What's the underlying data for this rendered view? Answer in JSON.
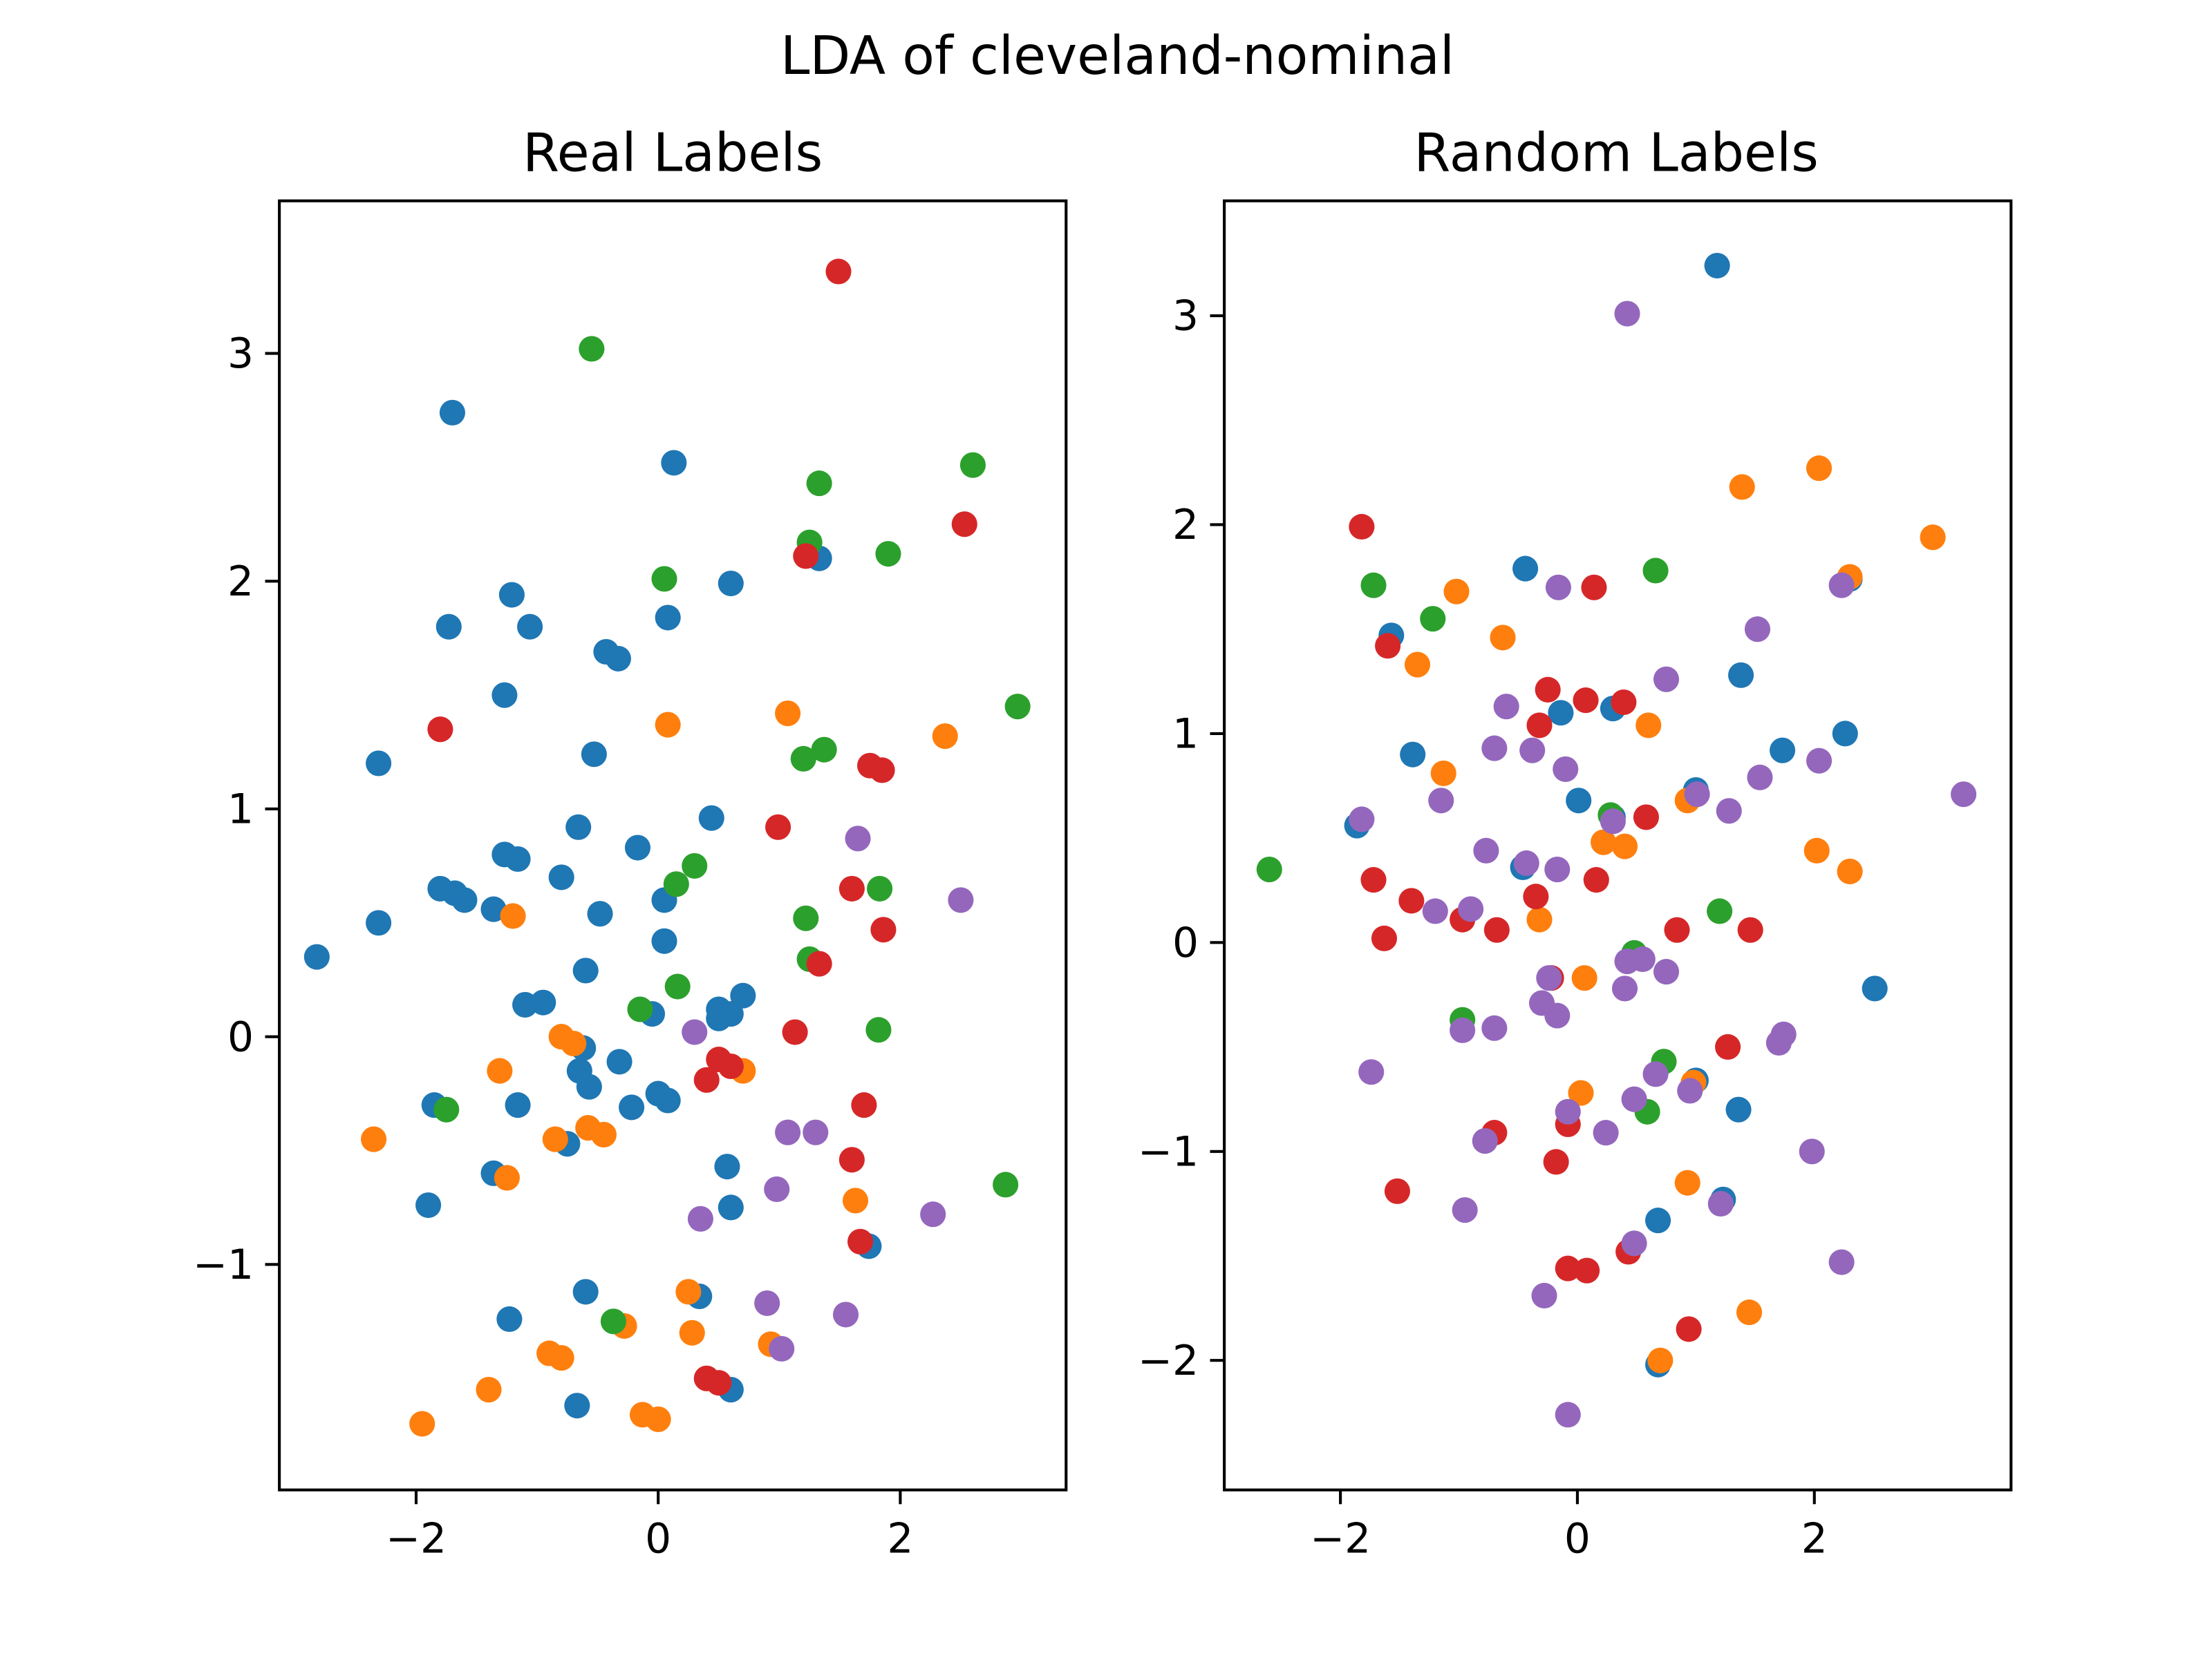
{
  "figure": {
    "suptitle": "LDA of cleveland-nominal"
  },
  "palette": {
    "blue": "#1f77b4",
    "orange": "#ff7f0e",
    "green": "#2ca02c",
    "red": "#d62728",
    "purple": "#9467bd"
  },
  "chart_data": [
    {
      "type": "scatter",
      "title": "Real Labels",
      "xlabel": "",
      "ylabel": "",
      "xlim": [
        -3.13,
        3.37
      ],
      "ylim": [
        -1.99,
        3.67
      ],
      "xticks": [
        "−2",
        "0",
        "2"
      ],
      "xtick_values": [
        -2,
        0,
        2
      ],
      "yticks": [
        "−1",
        "0",
        "1",
        "2",
        "3"
      ],
      "ytick_values": [
        -1,
        0,
        1,
        2,
        3
      ],
      "grid": false,
      "series": [
        {
          "color": "blue",
          "points": [
            [
              -2.82,
              0.35
            ],
            [
              -2.31,
              1.2
            ],
            [
              -2.31,
              0.5
            ],
            [
              -1.9,
              -0.74
            ],
            [
              -1.85,
              -0.3
            ],
            [
              -1.8,
              0.65
            ],
            [
              -1.73,
              1.8
            ],
            [
              -1.7,
              2.74
            ],
            [
              -1.68,
              0.63
            ],
            [
              -1.6,
              0.6
            ],
            [
              -1.36,
              0.56
            ],
            [
              -1.27,
              0.8
            ],
            [
              -1.27,
              1.5
            ],
            [
              -1.21,
              1.94
            ],
            [
              -1.16,
              0.78
            ],
            [
              -1.16,
              -0.3
            ],
            [
              -1.36,
              -0.6
            ],
            [
              -1.1,
              0.14
            ],
            [
              -1.06,
              1.8
            ],
            [
              -0.95,
              0.15
            ],
            [
              -0.8,
              0.7
            ],
            [
              -0.75,
              -0.47
            ],
            [
              -0.66,
              0.92
            ],
            [
              -0.65,
              -0.15
            ],
            [
              -0.62,
              -0.05
            ],
            [
              -0.6,
              0.29
            ],
            [
              -0.57,
              -0.22
            ],
            [
              -0.53,
              1.24
            ],
            [
              -0.48,
              0.54
            ],
            [
              -0.43,
              1.69
            ],
            [
              -0.33,
              1.66
            ],
            [
              -0.32,
              -0.11
            ],
            [
              -0.22,
              -0.31
            ],
            [
              -0.17,
              0.83
            ],
            [
              -0.05,
              0.1
            ],
            [
              0.0,
              -0.25
            ],
            [
              0.05,
              0.42
            ],
            [
              0.05,
              0.6
            ],
            [
              0.08,
              1.84
            ],
            [
              0.08,
              -0.28
            ],
            [
              0.13,
              2.52
            ],
            [
              0.44,
              0.96
            ],
            [
              0.5,
              0.08
            ],
            [
              0.5,
              0.12
            ],
            [
              0.57,
              -0.57
            ],
            [
              0.6,
              -0.75
            ],
            [
              0.6,
              1.99
            ],
            [
              0.6,
              0.1
            ],
            [
              0.7,
              0.18
            ],
            [
              1.33,
              2.1
            ],
            [
              1.74,
              -0.92
            ],
            [
              -1.23,
              -1.24
            ],
            [
              -0.6,
              -1.12
            ],
            [
              -0.67,
              -1.62
            ],
            [
              0.34,
              -1.14
            ],
            [
              0.6,
              -1.55
            ]
          ]
        },
        {
          "color": "orange",
          "points": [
            [
              -2.35,
              -0.45
            ],
            [
              -1.31,
              -0.15
            ],
            [
              -1.25,
              -0.62
            ],
            [
              -1.2,
              0.53
            ],
            [
              -0.85,
              -0.45
            ],
            [
              -0.8,
              0.0
            ],
            [
              -0.7,
              -0.03
            ],
            [
              -0.58,
              -0.4
            ],
            [
              -0.45,
              -0.43
            ],
            [
              0.08,
              1.37
            ],
            [
              0.7,
              -0.15
            ],
            [
              1.07,
              1.42
            ],
            [
              1.63,
              -0.72
            ],
            [
              2.37,
              1.32
            ],
            [
              -1.95,
              -1.7
            ],
            [
              -1.4,
              -1.55
            ],
            [
              -0.9,
              -1.39
            ],
            [
              -0.8,
              -1.41
            ],
            [
              -0.28,
              -1.27
            ],
            [
              -0.13,
              -1.66
            ],
            [
              0.0,
              -1.68
            ],
            [
              0.25,
              -1.12
            ],
            [
              0.28,
              -1.3
            ],
            [
              0.93,
              -1.35
            ]
          ]
        },
        {
          "color": "green",
          "points": [
            [
              -0.55,
              3.02
            ],
            [
              1.33,
              2.43
            ],
            [
              2.6,
              2.51
            ],
            [
              1.25,
              2.17
            ],
            [
              1.9,
              2.12
            ],
            [
              0.05,
              2.01
            ],
            [
              2.97,
              1.45
            ],
            [
              1.37,
              1.26
            ],
            [
              1.2,
              1.22
            ],
            [
              0.3,
              0.75
            ],
            [
              0.15,
              0.67
            ],
            [
              1.22,
              0.52
            ],
            [
              1.83,
              0.65
            ],
            [
              1.25,
              0.34
            ],
            [
              0.16,
              0.22
            ],
            [
              -0.15,
              0.12
            ],
            [
              1.82,
              0.03
            ],
            [
              2.87,
              -0.65
            ],
            [
              -1.75,
              -0.32
            ],
            [
              -0.37,
              -1.25
            ]
          ]
        },
        {
          "color": "red",
          "points": [
            [
              1.49,
              3.36
            ],
            [
              2.53,
              2.25
            ],
            [
              1.22,
              2.11
            ],
            [
              -1.8,
              1.35
            ],
            [
              1.75,
              1.19
            ],
            [
              1.85,
              1.17
            ],
            [
              0.99,
              0.92
            ],
            [
              1.6,
              0.65
            ],
            [
              1.86,
              0.47
            ],
            [
              1.33,
              0.32
            ],
            [
              1.13,
              0.02
            ],
            [
              0.5,
              -0.1
            ],
            [
              0.6,
              -0.13
            ],
            [
              0.4,
              -0.19
            ],
            [
              1.7,
              -0.3
            ],
            [
              1.6,
              -0.54
            ],
            [
              1.67,
              -0.9
            ],
            [
              0.4,
              -1.5
            ],
            [
              0.5,
              -1.52
            ]
          ]
        },
        {
          "color": "purple",
          "points": [
            [
              1.65,
              0.87
            ],
            [
              2.5,
              0.6
            ],
            [
              0.3,
              0.02
            ],
            [
              1.07,
              -0.42
            ],
            [
              1.3,
              -0.42
            ],
            [
              0.98,
              -0.67
            ],
            [
              2.27,
              -0.78
            ],
            [
              0.35,
              -0.8
            ],
            [
              0.9,
              -1.17
            ],
            [
              1.55,
              -1.22
            ],
            [
              1.02,
              -1.37
            ]
          ]
        }
      ]
    },
    {
      "type": "scatter",
      "title": "Random Labels",
      "xlabel": "",
      "ylabel": "",
      "xlim": [
        -2.98,
        3.66
      ],
      "ylim": [
        -2.62,
        3.55
      ],
      "xticks": [
        "−2",
        "0",
        "2"
      ],
      "xtick_values": [
        -2,
        0,
        2
      ],
      "yticks": [
        "−2",
        "−1",
        "0",
        "1",
        "2",
        "3"
      ],
      "ytick_values": [
        -2,
        -1,
        0,
        1,
        2,
        3
      ],
      "grid": false,
      "series": [
        {
          "color": "blue",
          "points": [
            [
              1.18,
              3.24
            ],
            [
              -0.44,
              1.79
            ],
            [
              -1.57,
              1.47
            ],
            [
              -0.14,
              1.1
            ],
            [
              0.3,
              1.12
            ],
            [
              1.38,
              1.28
            ],
            [
              2.3,
              1.74
            ],
            [
              -1.39,
              0.9
            ],
            [
              1.0,
              0.73
            ],
            [
              1.73,
              0.92
            ],
            [
              2.26,
              1.0
            ],
            [
              0.01,
              0.68
            ],
            [
              -1.86,
              0.56
            ],
            [
              -0.46,
              0.36
            ],
            [
              2.51,
              -0.22
            ],
            [
              0.3,
              0.6
            ],
            [
              1.36,
              -0.8
            ],
            [
              0.68,
              -1.33
            ],
            [
              1.23,
              -1.23
            ],
            [
              0.68,
              -2.02
            ],
            [
              1.0,
              -0.66
            ],
            [
              0.48,
              -0.05
            ]
          ]
        },
        {
          "color": "orange",
          "points": [
            [
              2.04,
              2.27
            ],
            [
              1.39,
              2.18
            ],
            [
              3.0,
              1.94
            ],
            [
              -1.02,
              1.68
            ],
            [
              -0.63,
              1.46
            ],
            [
              -1.35,
              1.33
            ],
            [
              0.6,
              1.04
            ],
            [
              -1.13,
              0.81
            ],
            [
              0.93,
              0.68
            ],
            [
              0.22,
              0.48
            ],
            [
              0.4,
              0.46
            ],
            [
              2.02,
              0.44
            ],
            [
              2.3,
              0.34
            ],
            [
              -0.32,
              0.11
            ],
            [
              0.06,
              -0.17
            ],
            [
              0.03,
              -0.72
            ],
            [
              0.98,
              -0.67
            ],
            [
              0.93,
              -1.15
            ],
            [
              1.45,
              -1.77
            ],
            [
              0.7,
              -2.0
            ],
            [
              2.3,
              1.75
            ]
          ]
        },
        {
          "color": "green",
          "points": [
            [
              -2.6,
              0.35
            ],
            [
              -1.72,
              1.71
            ],
            [
              -1.22,
              1.55
            ],
            [
              0.66,
              1.78
            ],
            [
              1.2,
              0.15
            ],
            [
              0.48,
              -0.05
            ],
            [
              0.73,
              -0.57
            ],
            [
              0.59,
              -0.81
            ],
            [
              -0.97,
              -0.37
            ],
            [
              0.28,
              0.61
            ]
          ]
        },
        {
          "color": "red",
          "points": [
            [
              -1.82,
              1.99
            ],
            [
              0.14,
              1.7
            ],
            [
              -1.6,
              1.42
            ],
            [
              -0.25,
              1.21
            ],
            [
              0.07,
              1.16
            ],
            [
              0.39,
              1.15
            ],
            [
              -0.32,
              1.04
            ],
            [
              0.58,
              0.6
            ],
            [
              -1.72,
              0.3
            ],
            [
              0.16,
              0.3
            ],
            [
              -1.4,
              0.2
            ],
            [
              -0.35,
              0.22
            ],
            [
              -0.97,
              0.11
            ],
            [
              -0.68,
              0.06
            ],
            [
              0.84,
              0.06
            ],
            [
              1.46,
              0.06
            ],
            [
              -1.63,
              0.02
            ],
            [
              -0.22,
              -0.17
            ],
            [
              1.27,
              -0.5
            ],
            [
              -0.7,
              -0.91
            ],
            [
              -0.08,
              -0.87
            ],
            [
              -1.52,
              -1.19
            ],
            [
              -0.18,
              -1.05
            ],
            [
              0.43,
              -1.48
            ],
            [
              -0.08,
              -1.56
            ],
            [
              0.08,
              -1.57
            ],
            [
              0.94,
              -1.85
            ]
          ]
        },
        {
          "color": "purple",
          "points": [
            [
              0.42,
              3.01
            ],
            [
              -0.16,
              1.7
            ],
            [
              1.52,
              1.5
            ],
            [
              0.75,
              1.26
            ],
            [
              -0.6,
              1.13
            ],
            [
              -0.7,
              0.93
            ],
            [
              -0.38,
              0.92
            ],
            [
              -0.1,
              0.83
            ],
            [
              1.54,
              0.79
            ],
            [
              2.04,
              0.87
            ],
            [
              3.26,
              0.71
            ],
            [
              1.01,
              0.71
            ],
            [
              -1.82,
              0.59
            ],
            [
              -1.15,
              0.68
            ],
            [
              1.28,
              0.63
            ],
            [
              0.3,
              0.58
            ],
            [
              -0.77,
              0.44
            ],
            [
              -0.43,
              0.38
            ],
            [
              -0.17,
              0.35
            ],
            [
              -1.2,
              0.15
            ],
            [
              -0.9,
              0.16
            ],
            [
              0.42,
              -0.09
            ],
            [
              0.55,
              -0.08
            ],
            [
              0.75,
              -0.14
            ],
            [
              -0.24,
              -0.17
            ],
            [
              0.4,
              -0.22
            ],
            [
              -0.3,
              -0.29
            ],
            [
              -0.17,
              -0.35
            ],
            [
              -0.97,
              -0.42
            ],
            [
              -0.7,
              -0.41
            ],
            [
              1.74,
              -0.44
            ],
            [
              1.7,
              -0.48
            ],
            [
              0.66,
              -0.63
            ],
            [
              -1.74,
              -0.62
            ],
            [
              0.95,
              -0.71
            ],
            [
              0.48,
              -0.75
            ],
            [
              -0.08,
              -0.81
            ],
            [
              -0.78,
              -0.95
            ],
            [
              0.24,
              -0.91
            ],
            [
              1.98,
              -1.0
            ],
            [
              1.21,
              -1.25
            ],
            [
              -0.95,
              -1.28
            ],
            [
              0.48,
              -1.44
            ],
            [
              -0.28,
              -1.69
            ],
            [
              2.23,
              -1.53
            ],
            [
              -0.08,
              -2.26
            ],
            [
              2.23,
              1.71
            ]
          ]
        }
      ]
    }
  ]
}
